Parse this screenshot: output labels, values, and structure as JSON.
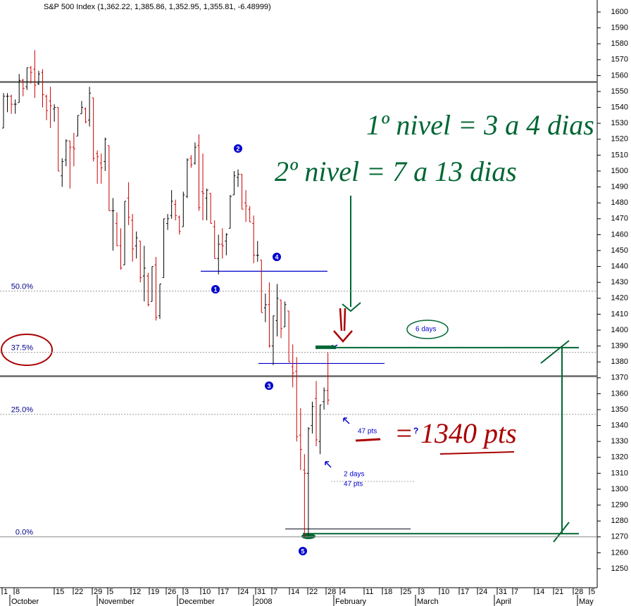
{
  "chart_data": {
    "type": "ohlc",
    "title": "S&P 500 Index (1,362.22, 1,385.86, 1,352.95, 1,355.81, -6.48999)",
    "ylim": [
      1250,
      1600
    ],
    "yticks": [
      1250,
      1260,
      1270,
      1280,
      1290,
      1300,
      1310,
      1320,
      1330,
      1340,
      1350,
      1360,
      1370,
      1380,
      1390,
      1400,
      1410,
      1420,
      1430,
      1440,
      1450,
      1460,
      1470,
      1480,
      1490,
      1500,
      1510,
      1520,
      1530,
      1540,
      1550,
      1560,
      1570,
      1580,
      1590,
      1600
    ],
    "day_labels": [
      "1",
      "8",
      "15",
      "22",
      "29",
      "5",
      "12",
      "19",
      "26",
      "3",
      "10",
      "17",
      "24",
      "31",
      "7",
      "14",
      "22",
      "28",
      "4",
      "11",
      "18",
      "25",
      "3",
      "10",
      "17",
      "24",
      "31",
      "7",
      "14",
      "21",
      "28",
      "5"
    ],
    "month_labels": [
      "October",
      "November",
      "December",
      "2008",
      "February",
      "March",
      "April",
      "May"
    ],
    "up_color": "#000000",
    "down_color": "#cc0000",
    "bars": [
      [
        1527,
        1549,
        1527,
        1547
      ],
      [
        1547,
        1549,
        1537,
        1547
      ],
      [
        1547,
        1548,
        1536,
        1542
      ],
      [
        1542,
        1545,
        1536,
        1542
      ],
      [
        1543,
        1561,
        1543,
        1557
      ],
      [
        1557,
        1558,
        1547,
        1552
      ],
      [
        1553,
        1565,
        1551,
        1565
      ],
      [
        1565,
        1566,
        1555,
        1562
      ],
      [
        1564,
        1576,
        1546,
        1554
      ],
      [
        1555,
        1563,
        1554,
        1561
      ],
      [
        1562,
        1564,
        1540,
        1548
      ],
      [
        1547,
        1548,
        1532,
        1538
      ],
      [
        1544,
        1553,
        1527,
        1541
      ],
      [
        1539,
        1542,
        1531,
        1540
      ],
      [
        1540,
        1540,
        1500,
        1500
      ],
      [
        1497,
        1508,
        1490,
        1506
      ],
      [
        1507,
        1520,
        1503,
        1519
      ],
      [
        1519,
        1519,
        1489,
        1515
      ],
      [
        1515,
        1524,
        1503,
        1514
      ],
      [
        1522,
        1535,
        1522,
        1535
      ],
      [
        1536,
        1544,
        1536,
        1540
      ],
      [
        1539,
        1540,
        1530,
        1531
      ],
      [
        1532,
        1553,
        1528,
        1549
      ],
      [
        1546,
        1546,
        1506,
        1508
      ],
      [
        1511,
        1513,
        1492,
        1509
      ],
      [
        1505,
        1511,
        1492,
        1502
      ],
      [
        1506,
        1521,
        1500,
        1520
      ],
      [
        1516,
        1516,
        1475,
        1475
      ],
      [
        1475,
        1483,
        1450,
        1475
      ],
      [
        1467,
        1474,
        1453,
        1453
      ],
      [
        1453,
        1464,
        1438,
        1439
      ],
      [
        1441,
        1481,
        1441,
        1481
      ],
      [
        1483,
        1493,
        1466,
        1471
      ],
      [
        1469,
        1473,
        1443,
        1451
      ],
      [
        1453,
        1462,
        1445,
        1458
      ],
      [
        1456,
        1456,
        1430,
        1433
      ],
      [
        1434,
        1453,
        1418,
        1439
      ],
      [
        1434,
        1436,
        1415,
        1416
      ],
      [
        1418,
        1440,
        1418,
        1440
      ],
      [
        1441,
        1446,
        1406,
        1408
      ],
      [
        1409,
        1429,
        1407,
        1429
      ],
      [
        1433,
        1470,
        1433,
        1470
      ],
      [
        1467,
        1473,
        1463,
        1470
      ],
      [
        1472,
        1488,
        1470,
        1481
      ],
      [
        1479,
        1482,
        1469,
        1472
      ],
      [
        1471,
        1472,
        1460,
        1462
      ],
      [
        1465,
        1487,
        1465,
        1485
      ],
      [
        1484,
        1508,
        1483,
        1507
      ],
      [
        1508,
        1510,
        1502,
        1504
      ],
      [
        1505,
        1518,
        1504,
        1515
      ],
      [
        1516,
        1523,
        1475,
        1477
      ],
      [
        1487,
        1511,
        1469,
        1486
      ],
      [
        1483,
        1489,
        1469,
        1488
      ],
      [
        1486,
        1486,
        1467,
        1467
      ],
      [
        1465,
        1469,
        1445,
        1445
      ],
      [
        1445,
        1460,
        1435,
        1454
      ],
      [
        1454,
        1464,
        1445,
        1453
      ],
      [
        1456,
        1461,
        1447,
        1460
      ],
      [
        1464,
        1485,
        1464,
        1484
      ],
      [
        1485,
        1500,
        1485,
        1497
      ],
      [
        1496,
        1501,
        1490,
        1498
      ],
      [
        1498,
        1498,
        1476,
        1476
      ],
      [
        1480,
        1488,
        1468,
        1478
      ],
      [
        1476,
        1478,
        1468,
        1468
      ],
      [
        1467,
        1472,
        1442,
        1447
      ],
      [
        1447,
        1456,
        1443,
        1447
      ],
      [
        1444,
        1444,
        1411,
        1411
      ],
      [
        1414,
        1423,
        1405,
        1416
      ],
      [
        1416,
        1430,
        1389,
        1390
      ],
      [
        1390,
        1409,
        1378,
        1409
      ],
      [
        1406,
        1429,
        1396,
        1420
      ],
      [
        1419,
        1419,
        1395,
        1401
      ],
      [
        1402,
        1418,
        1402,
        1416
      ],
      [
        1412,
        1412,
        1380,
        1380
      ],
      [
        1377,
        1391,
        1364,
        1373
      ],
      [
        1374,
        1383,
        1330,
        1333
      ],
      [
        1334,
        1351,
        1312,
        1325
      ],
      [
        1312,
        1322,
        1270,
        1310
      ],
      [
        1310,
        1339,
        1271,
        1338
      ],
      [
        1340,
        1355,
        1335,
        1352
      ],
      [
        1357,
        1368,
        1327,
        1331
      ],
      [
        1330,
        1353,
        1322,
        1353
      ],
      [
        1355,
        1364,
        1350,
        1362
      ],
      [
        1362,
        1386,
        1353,
        1356
      ]
    ],
    "horizontal_lines": [
      1556,
      1371
    ],
    "fib_levels": [
      {
        "value": 1424.5,
        "label": "50.0%"
      },
      {
        "value": 1386,
        "label": "37.5%"
      },
      {
        "value": 1347,
        "label": "25.0%"
      },
      {
        "value": 1270,
        "label": "0.0%"
      }
    ],
    "blue_lines": [
      1437,
      1379,
      1275
    ],
    "green_lines": [
      1389,
      1272
    ],
    "wave_labels": [
      "1",
      "2",
      "3",
      "4",
      "5"
    ],
    "annotations": [
      "6 days",
      "47 pts",
      "?",
      "2 days",
      "47 pts"
    ],
    "handwritten": [
      "1º nivel = 3 a 4 dias",
      "2º nivel = 7 a 13 dias",
      "= 1340 pts"
    ]
  }
}
